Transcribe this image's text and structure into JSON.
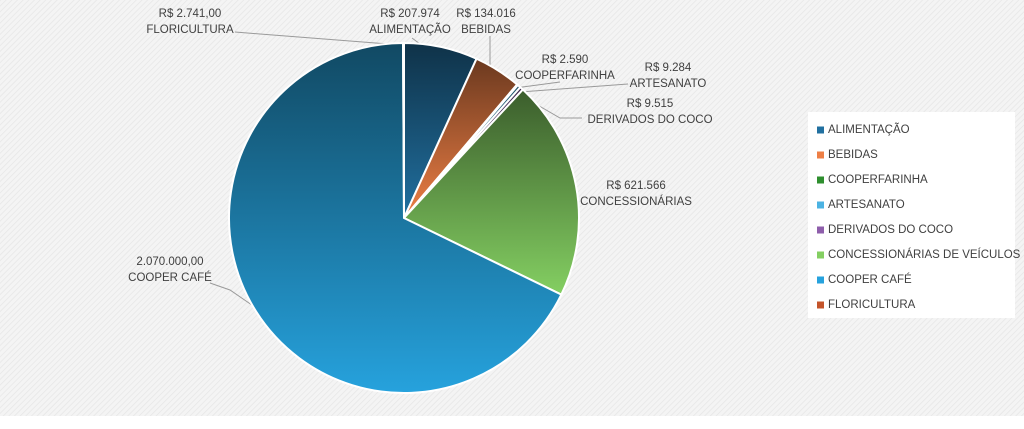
{
  "chart_data": {
    "type": "pie",
    "categories": [
      "ALIMENTAÇÃO",
      "BEBIDAS",
      "COOPERFARINHA",
      "ARTESANATO",
      "DERIVADOS DO COCO",
      "CONCESSIONÁRIAS DE VEÍCULOS",
      "COOPER CAFÉ",
      "FLORICULTURA"
    ],
    "slice_labels": [
      "ALIMENTAÇÃO",
      "BEBIDAS",
      "COOPERFARINHA",
      "ARTESANATO",
      "DERIVADOS DO COCO",
      "CONCESSIONÁRIAS",
      "COOPER CAFÉ",
      "FLORICULTURA"
    ],
    "values": [
      207974,
      134016,
      2590,
      9284,
      9515,
      621566,
      2070000,
      2741
    ],
    "value_labels": [
      "R$ 207.974",
      "R$ 134.016",
      "R$ 2.590",
      "R$ 9.284",
      "R$ 9.515",
      "R$ 621.566",
      "2.070.000,00",
      "R$ 2.741,00"
    ],
    "colors": [
      "#2170a0",
      "#ee7f45",
      "#2e8f2e",
      "#4cb3e3",
      "#8e5eab",
      "#84cf62",
      "#26a2dd",
      "#c4542a"
    ],
    "legend": "right"
  }
}
